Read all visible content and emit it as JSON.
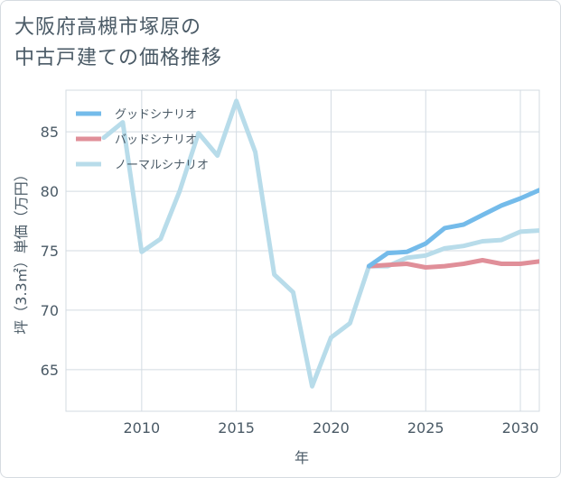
{
  "title_lines": [
    "大阪府高槻市塚原の",
    "中古戸建ての価格推移"
  ],
  "chart_data": {
    "type": "line",
    "xlabel": "年",
    "ylabel": "坪（3.3㎡）単価（万円）",
    "xlim": [
      2006,
      2031
    ],
    "ylim": [
      61.5,
      88.5
    ],
    "xticks": [
      2010,
      2015,
      2020,
      2025,
      2030
    ],
    "yticks": [
      65,
      70,
      75,
      80,
      85
    ],
    "grid": true,
    "legend_position": "top-left",
    "series": [
      {
        "name": "グッドシナリオ",
        "color": "#74bbea",
        "x": [
          2022,
          2023,
          2024,
          2025,
          2026,
          2027,
          2028,
          2029,
          2030,
          2031
        ],
        "values": [
          73.7,
          74.8,
          74.9,
          75.6,
          76.9,
          77.2,
          78.0,
          78.8,
          79.4,
          80.1
        ]
      },
      {
        "name": "バッドシナリオ",
        "color": "#e08f99",
        "x": [
          2022,
          2023,
          2024,
          2025,
          2026,
          2027,
          2028,
          2029,
          2030,
          2031
        ],
        "values": [
          73.7,
          73.8,
          73.9,
          73.6,
          73.7,
          73.9,
          74.2,
          73.9,
          73.9,
          74.1
        ]
      },
      {
        "name": "ノーマルシナリオ",
        "color": "#b8dcea",
        "x": [
          2008,
          2009,
          2010,
          2011,
          2012,
          2013,
          2014,
          2015,
          2016,
          2017,
          2018,
          2019,
          2020,
          2021,
          2022,
          2023,
          2024,
          2025,
          2026,
          2027,
          2028,
          2029,
          2030,
          2031
        ],
        "values": [
          84.5,
          85.8,
          74.9,
          76.0,
          80.0,
          84.9,
          83.0,
          87.6,
          83.3,
          73.0,
          71.5,
          63.6,
          67.7,
          68.9,
          73.7,
          73.7,
          74.4,
          74.6,
          75.2,
          75.4,
          75.8,
          75.9,
          76.6,
          76.7
        ]
      }
    ]
  }
}
